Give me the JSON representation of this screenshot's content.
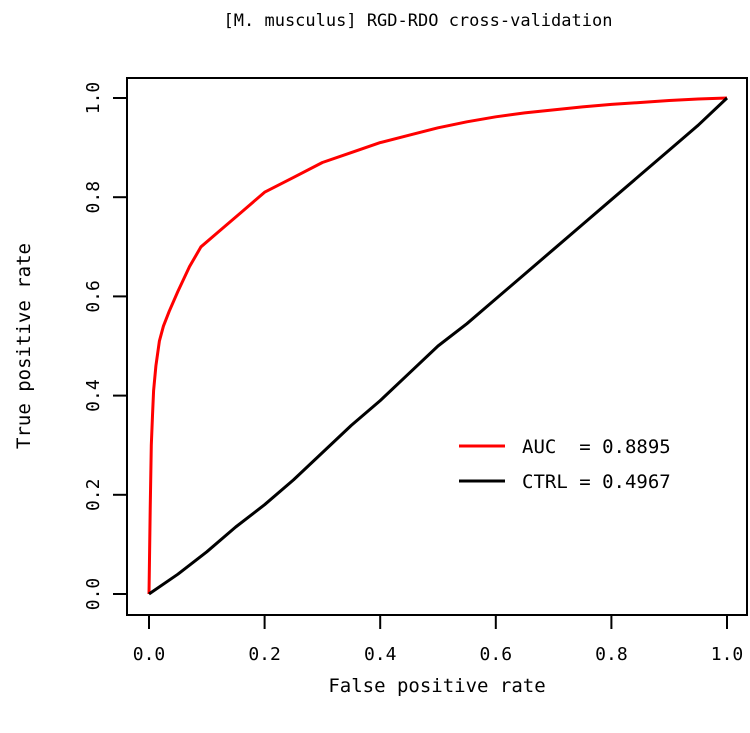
{
  "chart_data": {
    "type": "line",
    "title": "[M. musculus] RGD-RDO cross-validation",
    "xlabel": "False positive rate",
    "ylabel": "True positive rate",
    "xlim": [
      0,
      1
    ],
    "ylim": [
      0,
      1
    ],
    "x_ticks": [
      "0.0",
      "0.2",
      "0.4",
      "0.6",
      "0.8",
      "1.0"
    ],
    "y_ticks": [
      "0.0",
      "0.2",
      "0.4",
      "0.6",
      "0.8",
      "1.0"
    ],
    "grid": false,
    "legend_position": "lower-right",
    "series": [
      {
        "name": "AUC  = 0.8895",
        "color": "#ff0000",
        "x": [
          0,
          0.002,
          0.004,
          0.006,
          0.008,
          0.012,
          0.018,
          0.025,
          0.035,
          0.05,
          0.07,
          0.09,
          0.12,
          0.16,
          0.2,
          0.25,
          0.3,
          0.35,
          0.4,
          0.45,
          0.5,
          0.55,
          0.6,
          0.65,
          0.7,
          0.75,
          0.8,
          0.85,
          0.9,
          0.95,
          1.0
        ],
        "y": [
          0,
          0.17,
          0.3,
          0.36,
          0.41,
          0.46,
          0.51,
          0.54,
          0.57,
          0.61,
          0.66,
          0.7,
          0.73,
          0.77,
          0.81,
          0.84,
          0.87,
          0.89,
          0.91,
          0.925,
          0.94,
          0.952,
          0.962,
          0.97,
          0.976,
          0.982,
          0.987,
          0.991,
          0.995,
          0.998,
          1.0
        ]
      },
      {
        "name": "CTRL = 0.4967",
        "color": "#000000",
        "x": [
          0,
          0.05,
          0.1,
          0.15,
          0.2,
          0.25,
          0.3,
          0.35,
          0.4,
          0.45,
          0.5,
          0.55,
          0.6,
          0.65,
          0.7,
          0.75,
          0.8,
          0.85,
          0.9,
          0.95,
          1.0
        ],
        "y": [
          0,
          0.04,
          0.085,
          0.135,
          0.18,
          0.23,
          0.285,
          0.34,
          0.39,
          0.445,
          0.5,
          0.545,
          0.595,
          0.645,
          0.695,
          0.745,
          0.795,
          0.845,
          0.895,
          0.945,
          1.0
        ]
      }
    ]
  }
}
